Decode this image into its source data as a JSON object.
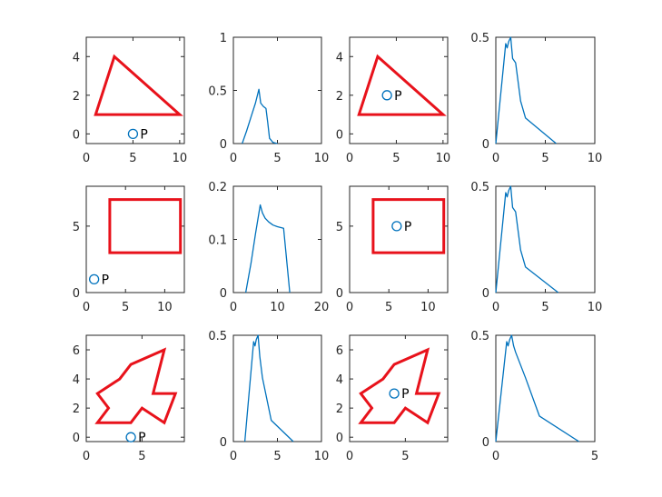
{
  "colors": {
    "shape": "#e8121b",
    "line": "#0072bd",
    "axes": "#262626",
    "background": "#ffffff"
  },
  "point_label": "P",
  "chart_data": [
    {
      "type": "shape",
      "xlim": [
        0,
        10.5
      ],
      "ylim": [
        -0.5,
        5
      ],
      "xticks": [
        {
          "v": 0,
          "t": "0"
        },
        {
          "v": 5,
          "t": "5"
        },
        {
          "v": 10,
          "t": "10"
        }
      ],
      "yticks": [
        {
          "v": 0,
          "t": "0"
        },
        {
          "v": 2,
          "t": "2"
        },
        {
          "v": 4,
          "t": "4"
        }
      ],
      "polygon": [
        [
          1,
          1
        ],
        [
          3,
          4
        ],
        [
          10,
          1
        ]
      ],
      "point": [
        5,
        0
      ],
      "point_label": "P"
    },
    {
      "type": "line",
      "xlim": [
        0,
        10
      ],
      "ylim": [
        0,
        1
      ],
      "xticks": [
        {
          "v": 0,
          "t": "0"
        },
        {
          "v": 5,
          "t": "5"
        },
        {
          "v": 10,
          "t": "10"
        }
      ],
      "yticks": [
        {
          "v": 0,
          "t": "0"
        },
        {
          "v": 0.5,
          "t": "0.5"
        },
        {
          "v": 1,
          "t": "1"
        }
      ],
      "x": [
        1.0,
        1.5,
        2.0,
        2.5,
        2.9,
        3.1,
        3.4,
        3.7,
        3.9,
        4.1,
        4.5,
        5.0
      ],
      "y": [
        0.0,
        0.12,
        0.25,
        0.38,
        0.51,
        0.38,
        0.35,
        0.33,
        0.2,
        0.05,
        0.01,
        0.0
      ]
    },
    {
      "type": "shape",
      "xlim": [
        0,
        10.5
      ],
      "ylim": [
        -0.5,
        5
      ],
      "xticks": [
        {
          "v": 0,
          "t": "0"
        },
        {
          "v": 5,
          "t": "5"
        },
        {
          "v": 10,
          "t": "10"
        }
      ],
      "yticks": [
        {
          "v": 0,
          "t": "0"
        },
        {
          "v": 2,
          "t": "2"
        },
        {
          "v": 4,
          "t": "4"
        }
      ],
      "polygon": [
        [
          1,
          1
        ],
        [
          3,
          4
        ],
        [
          10,
          1
        ]
      ],
      "point": [
        4,
        2
      ],
      "point_label": "P"
    },
    {
      "type": "line",
      "xlim": [
        0,
        10
      ],
      "ylim": [
        0,
        0.5
      ],
      "xticks": [
        {
          "v": 0,
          "t": "0"
        },
        {
          "v": 5,
          "t": "5"
        },
        {
          "v": 10,
          "t": "10"
        }
      ],
      "yticks": [
        {
          "v": 0,
          "t": "0"
        },
        {
          "v": 0.5,
          "t": "0.5"
        }
      ],
      "x": [
        0.0,
        1.0,
        1.15,
        1.3,
        1.5,
        1.7,
        2.0,
        2.5,
        3.0,
        6.1
      ],
      "y": [
        0.0,
        0.47,
        0.45,
        0.48,
        0.5,
        0.4,
        0.38,
        0.2,
        0.12,
        0.0
      ]
    },
    {
      "type": "shape",
      "xlim": [
        0,
        12.5
      ],
      "ylim": [
        0,
        8
      ],
      "xticks": [
        {
          "v": 0,
          "t": "0"
        },
        {
          "v": 5,
          "t": "5"
        },
        {
          "v": 10,
          "t": "10"
        }
      ],
      "yticks": [
        {
          "v": 0,
          "t": "0"
        },
        {
          "v": 5,
          "t": "5"
        }
      ],
      "polygon": [
        [
          3,
          3
        ],
        [
          12,
          3
        ],
        [
          12,
          7
        ],
        [
          3,
          7
        ]
      ],
      "point": [
        1,
        1
      ],
      "point_label": "P"
    },
    {
      "type": "line",
      "xlim": [
        0,
        20
      ],
      "ylim": [
        0,
        0.2
      ],
      "xticks": [
        {
          "v": 0,
          "t": "0"
        },
        {
          "v": 10,
          "t": "10"
        },
        {
          "v": 20,
          "t": "20"
        }
      ],
      "yticks": [
        {
          "v": 0,
          "t": "0"
        },
        {
          "v": 0.1,
          "t": "0.1"
        },
        {
          "v": 0.2,
          "t": "0.2"
        }
      ],
      "x": [
        2.8,
        4.0,
        5.0,
        6.1,
        6.6,
        7.2,
        8.0,
        9.0,
        10.0,
        11.4,
        12.8
      ],
      "y": [
        0.0,
        0.055,
        0.11,
        0.165,
        0.15,
        0.14,
        0.133,
        0.127,
        0.124,
        0.121,
        0.0
      ]
    },
    {
      "type": "shape",
      "xlim": [
        0,
        12.5
      ],
      "ylim": [
        0,
        8
      ],
      "xticks": [
        {
          "v": 0,
          "t": "0"
        },
        {
          "v": 5,
          "t": "5"
        },
        {
          "v": 10,
          "t": "10"
        }
      ],
      "yticks": [
        {
          "v": 0,
          "t": "0"
        },
        {
          "v": 5,
          "t": "5"
        }
      ],
      "polygon": [
        [
          3,
          3
        ],
        [
          12,
          3
        ],
        [
          12,
          7
        ],
        [
          3,
          7
        ]
      ],
      "point": [
        6,
        5
      ],
      "point_label": "P"
    },
    {
      "type": "line",
      "xlim": [
        0,
        10
      ],
      "ylim": [
        0,
        0.5
      ],
      "xticks": [
        {
          "v": 0,
          "t": "0"
        },
        {
          "v": 5,
          "t": "5"
        },
        {
          "v": 10,
          "t": "10"
        }
      ],
      "yticks": [
        {
          "v": 0,
          "t": "0"
        },
        {
          "v": 0.5,
          "t": "0.5"
        }
      ],
      "x": [
        0.0,
        1.0,
        1.15,
        1.3,
        1.5,
        1.7,
        2.0,
        2.5,
        3.0,
        6.3
      ],
      "y": [
        0.0,
        0.47,
        0.45,
        0.48,
        0.5,
        0.4,
        0.38,
        0.2,
        0.12,
        0.0
      ]
    },
    {
      "type": "shape",
      "xlim": [
        0,
        8.8
      ],
      "ylim": [
        -0.3,
        7
      ],
      "xticks": [
        {
          "v": 0,
          "t": "0"
        },
        {
          "v": 5,
          "t": "5"
        }
      ],
      "yticks": [
        {
          "v": 0,
          "t": "0"
        },
        {
          "v": 2,
          "t": "2"
        },
        {
          "v": 4,
          "t": "4"
        },
        {
          "v": 6,
          "t": "6"
        }
      ],
      "polygon": [
        [
          1,
          3
        ],
        [
          3,
          4
        ],
        [
          4,
          5
        ],
        [
          7,
          6
        ],
        [
          6,
          3
        ],
        [
          8,
          3
        ],
        [
          7,
          1
        ],
        [
          5,
          2
        ],
        [
          4,
          1
        ],
        [
          1,
          1
        ],
        [
          2,
          2
        ]
      ],
      "point": [
        4,
        0
      ],
      "point_label": "P"
    },
    {
      "type": "line",
      "xlim": [
        0,
        10
      ],
      "ylim": [
        0,
        0.5
      ],
      "xticks": [
        {
          "v": 0,
          "t": "0"
        },
        {
          "v": 5,
          "t": "5"
        },
        {
          "v": 10,
          "t": "10"
        }
      ],
      "yticks": [
        {
          "v": 0,
          "t": "0"
        },
        {
          "v": 0.5,
          "t": "0.5"
        }
      ],
      "x": [
        1.3,
        2.3,
        2.45,
        2.6,
        2.8,
        3.0,
        3.3,
        4.3,
        6.8
      ],
      "y": [
        0.0,
        0.47,
        0.45,
        0.48,
        0.5,
        0.4,
        0.3,
        0.1,
        0.0
      ]
    },
    {
      "type": "shape",
      "xlim": [
        0,
        8.8
      ],
      "ylim": [
        -0.3,
        7
      ],
      "xticks": [
        {
          "v": 0,
          "t": "0"
        },
        {
          "v": 5,
          "t": "5"
        }
      ],
      "yticks": [
        {
          "v": 0,
          "t": "0"
        },
        {
          "v": 2,
          "t": "2"
        },
        {
          "v": 4,
          "t": "4"
        },
        {
          "v": 6,
          "t": "6"
        }
      ],
      "polygon": [
        [
          1,
          3
        ],
        [
          3,
          4
        ],
        [
          4,
          5
        ],
        [
          7,
          6
        ],
        [
          6,
          3
        ],
        [
          8,
          3
        ],
        [
          7,
          1
        ],
        [
          5,
          2
        ],
        [
          4,
          1
        ],
        [
          1,
          1
        ],
        [
          2,
          2
        ]
      ],
      "point": [
        4,
        3
      ],
      "point_label": "P"
    },
    {
      "type": "line",
      "xlim": [
        0,
        5
      ],
      "ylim": [
        0,
        0.5
      ],
      "xticks": [
        {
          "v": 0,
          "t": "0"
        },
        {
          "v": 5,
          "t": "5"
        }
      ],
      "yticks": [
        {
          "v": 0,
          "t": "0"
        },
        {
          "v": 0.5,
          "t": "0.5"
        }
      ],
      "x": [
        0.0,
        0.55,
        0.62,
        0.7,
        0.8,
        0.9,
        1.0,
        1.5,
        2.2,
        4.2
      ],
      "y": [
        0.0,
        0.47,
        0.45,
        0.48,
        0.5,
        0.45,
        0.42,
        0.3,
        0.12,
        0.0
      ]
    }
  ]
}
